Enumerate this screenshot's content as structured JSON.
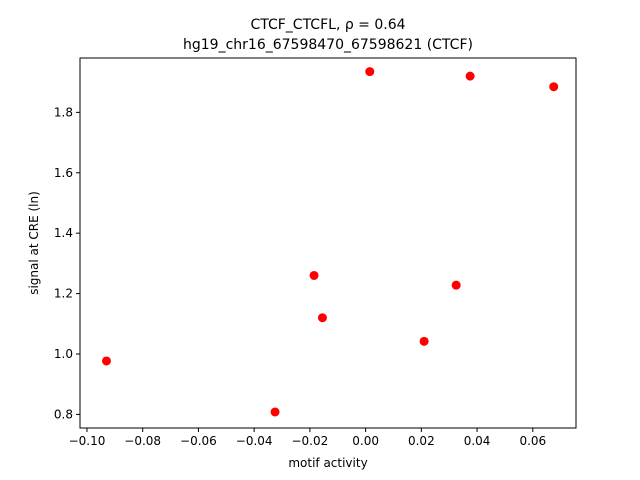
{
  "chart_data": {
    "type": "scatter",
    "title_line1": "CTCF_CTCFL, ρ = 0.64",
    "title_line2": "hg19_chr16_67598470_67598621 (CTCF)",
    "xlabel": "motif activity",
    "ylabel": "signal at CRE (ln)",
    "xlim": [
      -0.1025,
      0.0755
    ],
    "ylim": [
      0.755,
      1.98
    ],
    "xticks": [
      -0.1,
      -0.08,
      -0.06,
      -0.04,
      -0.02,
      0.0,
      0.02,
      0.04,
      0.06
    ],
    "xtick_labels": [
      "−0.10",
      "−0.08",
      "−0.06",
      "−0.04",
      "−0.02",
      "0.00",
      "0.02",
      "0.04",
      "0.06"
    ],
    "yticks": [
      0.8,
      1.0,
      1.2,
      1.4,
      1.6,
      1.8
    ],
    "ytick_labels": [
      "0.8",
      "1.0",
      "1.2",
      "1.4",
      "1.6",
      "1.8"
    ],
    "grid": false,
    "marker_color": "#ff0000",
    "x": [
      -0.093,
      -0.0325,
      -0.0185,
      -0.0155,
      0.0015,
      0.021,
      0.0325,
      0.0375,
      0.0675
    ],
    "y": [
      0.977,
      0.808,
      1.26,
      1.12,
      1.935,
      1.042,
      1.228,
      1.92,
      1.885
    ]
  }
}
